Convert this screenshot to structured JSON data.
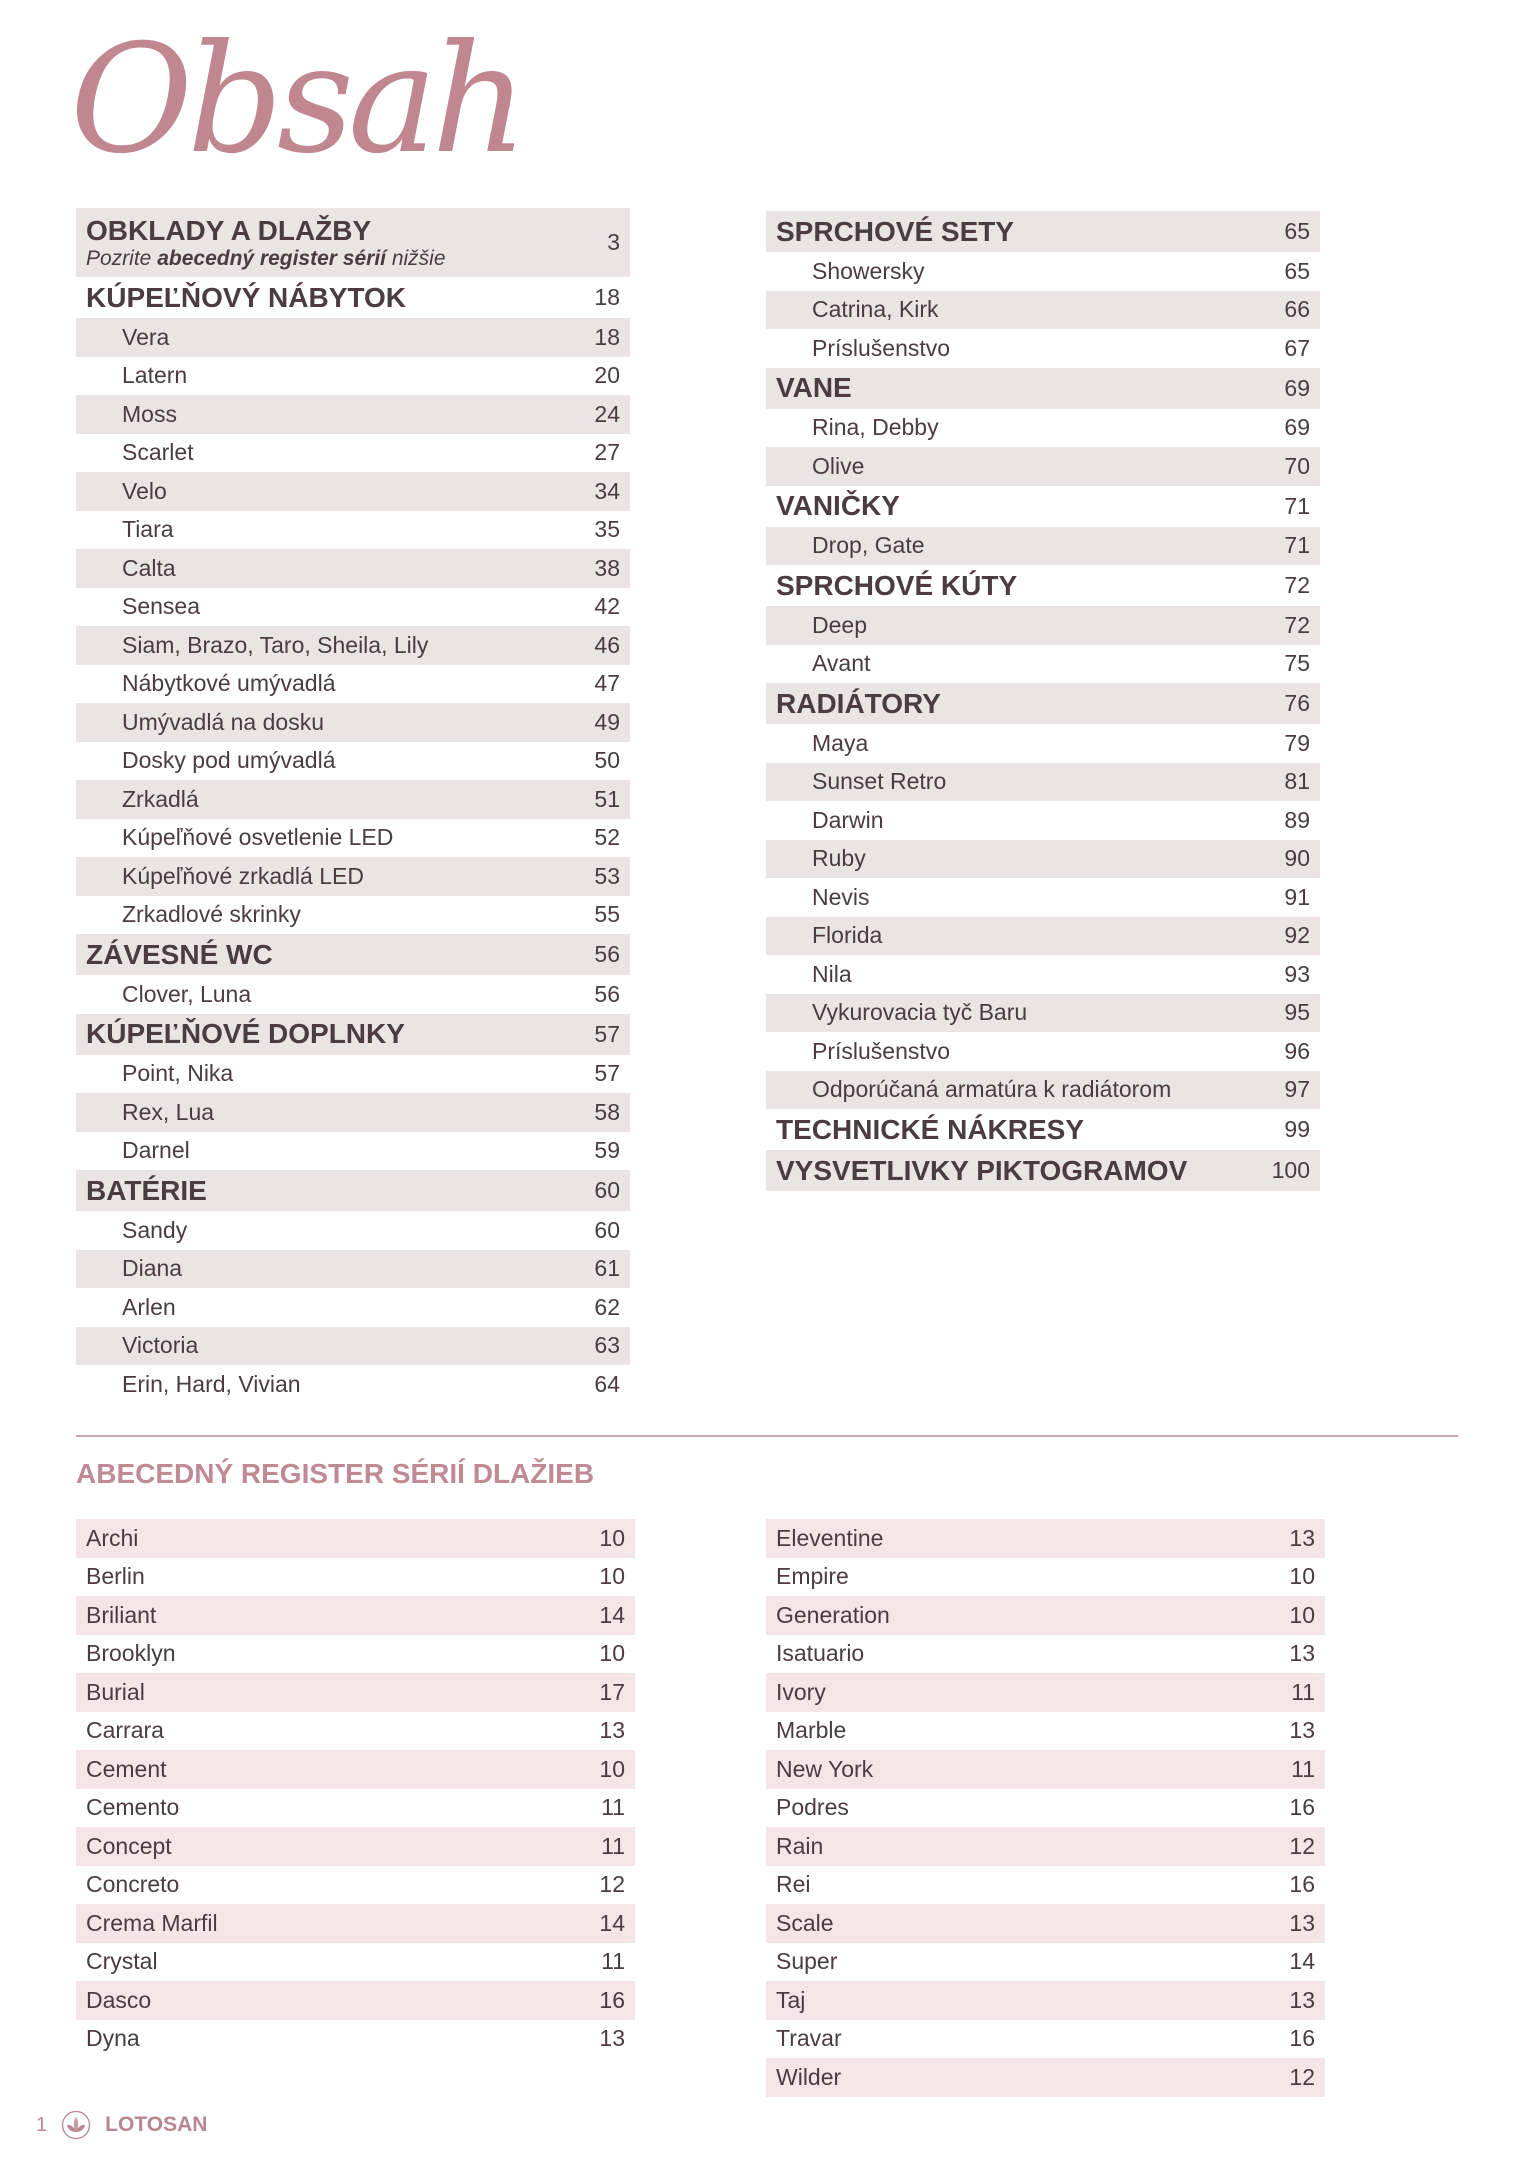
{
  "title": "Obsah",
  "toc": {
    "first": {
      "label": "OBKLADY A DLAŽBY",
      "note_pre": "Pozrite ",
      "note_bold": "abecedný register sérií",
      "note_post": " nižšie",
      "page": "3"
    },
    "left": [
      {
        "label": "KÚPEĽŇOVÝ NÁBYTOK",
        "page": "18",
        "type": "sec"
      },
      {
        "label": "Vera",
        "page": "18",
        "type": "sub"
      },
      {
        "label": "Latern",
        "page": "20",
        "type": "sub"
      },
      {
        "label": "Moss",
        "page": "24",
        "type": "sub"
      },
      {
        "label": "Scarlet",
        "page": "27",
        "type": "sub"
      },
      {
        "label": "Velo",
        "page": "34",
        "type": "sub"
      },
      {
        "label": "Tiara",
        "page": "35",
        "type": "sub"
      },
      {
        "label": "Calta",
        "page": "38",
        "type": "sub"
      },
      {
        "label": "Sensea",
        "page": "42",
        "type": "sub"
      },
      {
        "label": "Siam, Brazo, Taro, Sheila, Lily",
        "page": "46",
        "type": "sub"
      },
      {
        "label": "Nábytkové umývadlá",
        "page": "47",
        "type": "sub"
      },
      {
        "label": "Umývadlá na dosku",
        "page": "49",
        "type": "sub"
      },
      {
        "label": "Dosky pod umývadlá",
        "page": "50",
        "type": "sub"
      },
      {
        "label": "Zrkadlá",
        "page": "51",
        "type": "sub"
      },
      {
        "label": "Kúpeľňové osvetlenie LED",
        "page": "52",
        "type": "sub"
      },
      {
        "label": "Kúpeľňové zrkadlá LED",
        "page": "53",
        "type": "sub"
      },
      {
        "label": "Zrkadlové skrinky",
        "page": "55",
        "type": "sub"
      },
      {
        "label": "ZÁVESNÉ WC",
        "page": "56",
        "type": "sec"
      },
      {
        "label": "Clover, Luna",
        "page": "56",
        "type": "sub"
      },
      {
        "label": "KÚPEĽŇOVÉ DOPLNKY",
        "page": "57",
        "type": "sec"
      },
      {
        "label": "Point, Nika",
        "page": "57",
        "type": "sub"
      },
      {
        "label": "Rex, Lua",
        "page": "58",
        "type": "sub"
      },
      {
        "label": "Darnel",
        "page": "59",
        "type": "sub"
      },
      {
        "label": "BATÉRIE",
        "page": "60",
        "type": "sec"
      },
      {
        "label": "Sandy",
        "page": "60",
        "type": "sub"
      },
      {
        "label": "Diana",
        "page": "61",
        "type": "sub"
      },
      {
        "label": "Arlen",
        "page": "62",
        "type": "sub"
      },
      {
        "label": "Victoria",
        "page": "63",
        "type": "sub"
      },
      {
        "label": "Erin, Hard, Vivian",
        "page": "64",
        "type": "sub"
      }
    ],
    "right": [
      {
        "label": "SPRCHOVÉ SETY",
        "page": "65",
        "type": "sec"
      },
      {
        "label": "Showersky",
        "page": "65",
        "type": "sub"
      },
      {
        "label": "Catrina, Kirk",
        "page": "66",
        "type": "sub"
      },
      {
        "label": "Príslušenstvo",
        "page": "67",
        "type": "sub"
      },
      {
        "label": "VANE",
        "page": "69",
        "type": "sec"
      },
      {
        "label": "Rina, Debby",
        "page": "69",
        "type": "sub"
      },
      {
        "label": "Olive",
        "page": "70",
        "type": "sub"
      },
      {
        "label": "VANIČKY",
        "page": "71",
        "type": "sec"
      },
      {
        "label": "Drop, Gate",
        "page": "71",
        "type": "sub"
      },
      {
        "label": "SPRCHOVÉ KÚTY",
        "page": "72",
        "type": "sec"
      },
      {
        "label": "Deep",
        "page": "72",
        "type": "sub"
      },
      {
        "label": "Avant",
        "page": "75",
        "type": "sub"
      },
      {
        "label": "RADIÁTORY",
        "page": "76",
        "type": "sec"
      },
      {
        "label": "Maya",
        "page": "79",
        "type": "sub"
      },
      {
        "label": "Sunset Retro",
        "page": "81",
        "type": "sub"
      },
      {
        "label": "Darwin",
        "page": "89",
        "type": "sub"
      },
      {
        "label": "Ruby",
        "page": "90",
        "type": "sub"
      },
      {
        "label": "Nevis",
        "page": "91",
        "type": "sub"
      },
      {
        "label": "Florida",
        "page": "92",
        "type": "sub"
      },
      {
        "label": "Nila",
        "page": "93",
        "type": "sub"
      },
      {
        "label": "Vykurovacia tyč Baru",
        "page": "95",
        "type": "sub"
      },
      {
        "label": "Príslušenstvo",
        "page": "96",
        "type": "sub"
      },
      {
        "label": "Odporúčaná armatúra k radiátorom",
        "page": "97",
        "type": "sub"
      },
      {
        "label": "TECHNICKÉ NÁKRESY",
        "page": "99",
        "type": "sec"
      },
      {
        "label": "VYSVETLIVKY PIKTOGRAMOV",
        "page": "100",
        "type": "sec"
      }
    ]
  },
  "register": {
    "title": "ABECEDNÝ REGISTER SÉRIÍ DLAŽIEB",
    "left": [
      {
        "label": "Archi",
        "page": "10"
      },
      {
        "label": "Berlin",
        "page": "10"
      },
      {
        "label": "Briliant",
        "page": "14"
      },
      {
        "label": "Brooklyn",
        "page": "10"
      },
      {
        "label": "Burial",
        "page": "17"
      },
      {
        "label": "Carrara",
        "page": "13"
      },
      {
        "label": "Cement",
        "page": "10"
      },
      {
        "label": "Cemento",
        "page": "11"
      },
      {
        "label": "Concept",
        "page": "11"
      },
      {
        "label": "Concreto",
        "page": "12"
      },
      {
        "label": "Crema Marfil",
        "page": "14"
      },
      {
        "label": "Crystal",
        "page": "11"
      },
      {
        "label": "Dasco",
        "page": "16"
      },
      {
        "label": "Dyna",
        "page": "13"
      }
    ],
    "right": [
      {
        "label": "Eleventine",
        "page": "13"
      },
      {
        "label": "Empire",
        "page": "10"
      },
      {
        "label": "Generation",
        "page": "10"
      },
      {
        "label": "Isatuario",
        "page": "13"
      },
      {
        "label": "Ivory",
        "page": "11"
      },
      {
        "label": "Marble",
        "page": "13"
      },
      {
        "label": "New York",
        "page": "11"
      },
      {
        "label": "Podres",
        "page": "16"
      },
      {
        "label": "Rain",
        "page": "12"
      },
      {
        "label": "Rei",
        "page": "16"
      },
      {
        "label": "Scale",
        "page": "13"
      },
      {
        "label": "Super",
        "page": "14"
      },
      {
        "label": "Taj",
        "page": "13"
      },
      {
        "label": "Travar",
        "page": "16"
      },
      {
        "label": "Wilder",
        "page": "12"
      }
    ]
  },
  "footer": {
    "page_number": "1",
    "brand": "LOTOSAN",
    "logo_icon": "lotus-icon"
  },
  "colors": {
    "accent": "#c08790",
    "text": "#4a3c40",
    "toc_shade": "#eae4e5",
    "register_shade": "#f3e5e8"
  }
}
